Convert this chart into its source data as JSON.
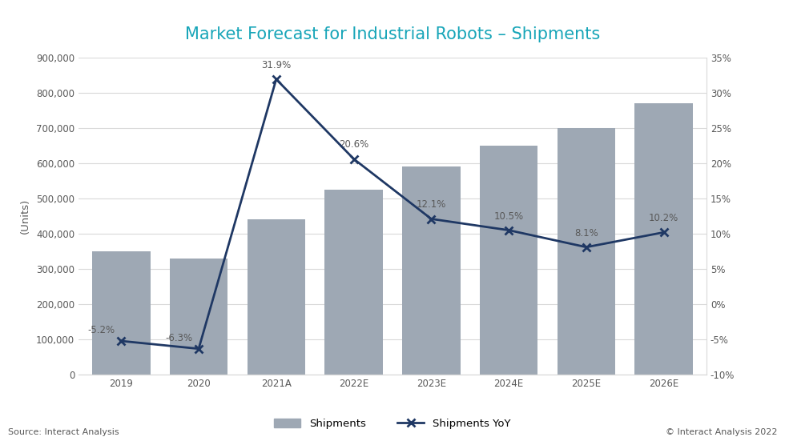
{
  "title": "Market Forecast for Industrial Robots – Shipments",
  "categories": [
    "2019",
    "2020",
    "2021A",
    "2022E",
    "2023E",
    "2024E",
    "2025E",
    "2026E"
  ],
  "shipments": [
    350000,
    330000,
    440000,
    525000,
    590000,
    650000,
    700000,
    770000
  ],
  "yoy": [
    -5.2,
    -6.3,
    31.9,
    20.6,
    12.1,
    10.5,
    8.1,
    10.2
  ],
  "yoy_labels": [
    "-5.2%",
    "-6.3%",
    "31.9%",
    "20.6%",
    "12.1%",
    "10.5%",
    "8.1%",
    "10.2%"
  ],
  "bar_color": "#9ea8b4",
  "line_color": "#1f3864",
  "title_color": "#17a5b8",
  "axis_label_color": "#595959",
  "tick_color": "#595959",
  "grid_color": "#d9d9d9",
  "background_color": "#ffffff",
  "ylabel_left": "(Units)",
  "ylim_left": [
    0,
    900000
  ],
  "ylim_right": [
    -10,
    35
  ],
  "yticks_left": [
    0,
    100000,
    200000,
    300000,
    400000,
    500000,
    600000,
    700000,
    800000,
    900000
  ],
  "yticks_right": [
    -10,
    -5,
    0,
    5,
    10,
    15,
    20,
    25,
    30,
    35
  ],
  "source_text": "Source: Interact Analysis",
  "copyright_text": "© Interact Analysis 2022",
  "legend_shipments": "Shipments",
  "legend_yoy": "Shipments YoY"
}
